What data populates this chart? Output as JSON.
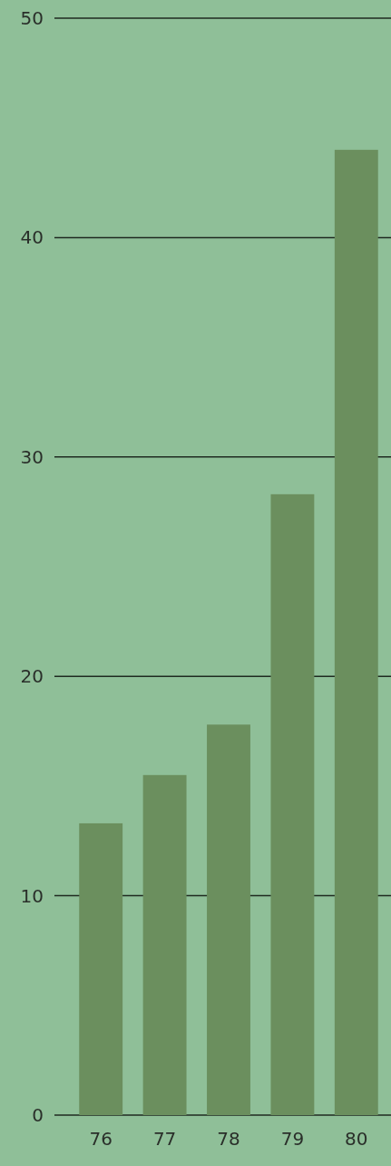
{
  "chart_data": {
    "type": "bar",
    "categories": [
      "76",
      "77",
      "78",
      "79",
      "80"
    ],
    "values": [
      13.3,
      15.5,
      17.8,
      28.3,
      44.0
    ],
    "color": "#6b8f5e",
    "ylim": [
      0,
      50
    ],
    "yticks": [
      0,
      10,
      20,
      30,
      40,
      50
    ],
    "grid": "y"
  }
}
